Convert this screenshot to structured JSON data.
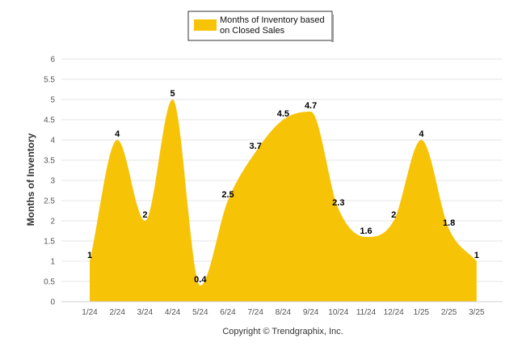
{
  "chart_data": {
    "type": "area",
    "categories": [
      "1/24",
      "2/24",
      "3/24",
      "4/24",
      "5/24",
      "6/24",
      "7/24",
      "8/24",
      "9/24",
      "10/24",
      "11/24",
      "12/24",
      "1/25",
      "2/25",
      "3/25"
    ],
    "series": [
      {
        "name": "Months of Inventory based on Closed Sales",
        "values": [
          1,
          4,
          2,
          5,
          0.4,
          2.5,
          3.7,
          4.5,
          4.7,
          2.3,
          1.6,
          2,
          4,
          1.8,
          1
        ]
      }
    ],
    "data_labels": [
      "1",
      "4",
      "2",
      "5",
      "0.4",
      "2.5",
      "3.7",
      "4.5",
      "4.7",
      "2.3",
      "1.6",
      "2",
      "4",
      "1.8",
      "1"
    ],
    "y_ticks": [
      "0",
      "0.5",
      "1",
      "1.5",
      "2",
      "2.5",
      "3",
      "3.5",
      "4",
      "4.5",
      "5",
      "5.5",
      "6"
    ],
    "ylim": [
      0,
      6
    ],
    "ylabel": "Months of Inventory",
    "xlabel": "",
    "grid": true,
    "legend": {
      "placement": "top-center",
      "line1": "Months of Inventory based",
      "line2": "on Closed Sales"
    },
    "credit": "Copyright © Trendgraphix, Inc.",
    "colors": {
      "fill": "#f7c307",
      "grid": "#e6e6e6",
      "legend_border": "#333333"
    }
  }
}
